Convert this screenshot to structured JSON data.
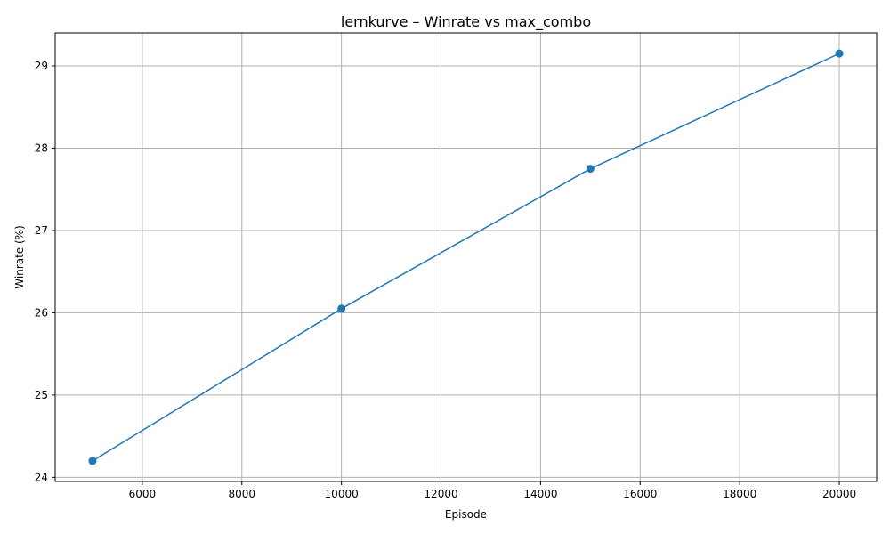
{
  "chart_data": {
    "type": "line",
    "title": "lernkurve – Winrate vs max_combo",
    "xlabel": "Episode",
    "ylabel": "Winrate (%)",
    "x": [
      5000,
      10000,
      15000,
      20000
    ],
    "series": [
      {
        "values": [
          24.2,
          26.05,
          27.75,
          29.15
        ],
        "marker": "circle"
      }
    ],
    "xlim": [
      4250,
      20750
    ],
    "ylim": [
      23.95,
      29.4
    ],
    "xticks": [
      6000,
      8000,
      10000,
      12000,
      14000,
      16000,
      18000,
      20000
    ],
    "yticks": [
      24,
      25,
      26,
      27,
      28,
      29
    ],
    "grid": true,
    "colors": {
      "line": "#1f77b4",
      "grid": "#b0b0b0"
    }
  }
}
